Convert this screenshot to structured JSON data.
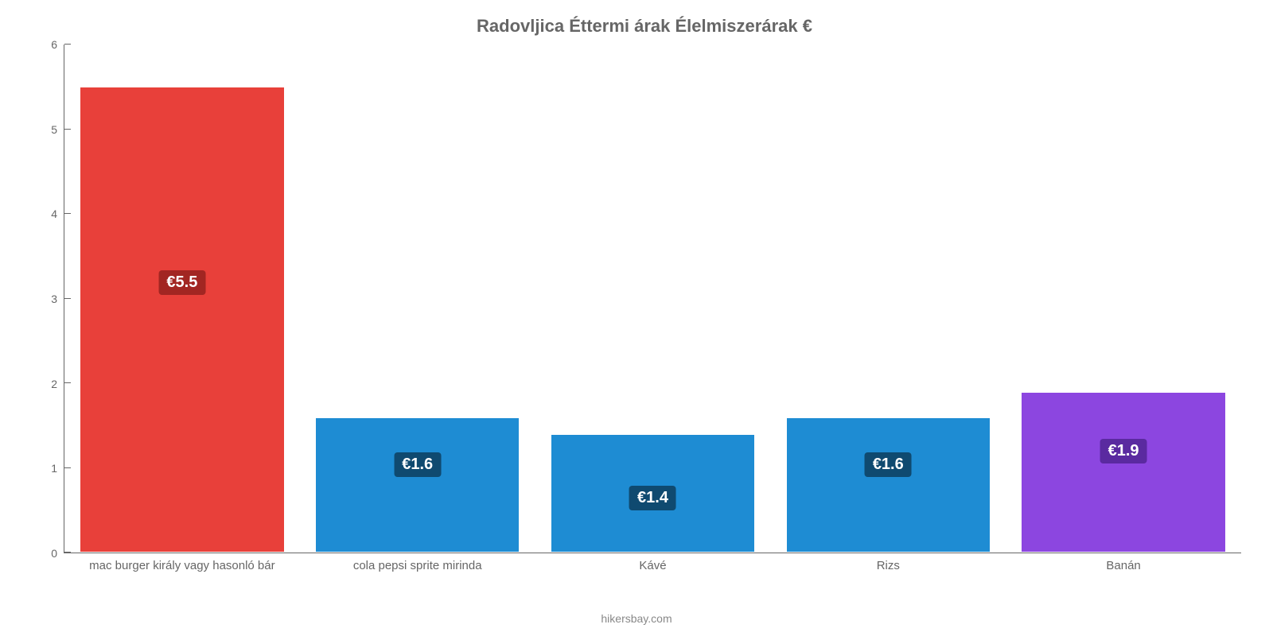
{
  "chart": {
    "type": "bar",
    "title": "Radovljica Éttermi árak Élelmiszerárak €",
    "title_fontsize": 22,
    "title_color": "#666666",
    "background_color": "#ffffff",
    "axis_color": "#666666",
    "tick_font_color": "#666666",
    "tick_fontsize": 14,
    "x_label_fontsize": 15,
    "ylim_min": 0,
    "ylim_max": 6,
    "ytick_step": 1,
    "yticks": [
      0,
      1,
      2,
      3,
      4,
      5,
      6
    ],
    "bar_width_pct": 87,
    "categories": [
      "mac burger király vagy hasonló bár",
      "cola pepsi sprite mirinda",
      "Kávé",
      "Rizs",
      "Banán"
    ],
    "values": [
      5.5,
      1.6,
      1.4,
      1.6,
      1.9
    ],
    "value_labels": [
      "€5.5",
      "€1.6",
      "€1.4",
      "€1.6",
      "€1.9"
    ],
    "bar_colors": [
      "#e8403a",
      "#1e8cd3",
      "#1e8cd3",
      "#1e8cd3",
      "#8c46e0"
    ],
    "label_bg_colors": [
      "#a22622",
      "#0f4a70",
      "#0f4a70",
      "#0f4a70",
      "#5a2aa0"
    ],
    "label_text_color": "#ffffff",
    "label_fontsize": 20,
    "bar_border_color": "#ffffff",
    "footer_text": "hikersbay.com",
    "footer_color": "#888888",
    "footer_fontsize": 14
  }
}
